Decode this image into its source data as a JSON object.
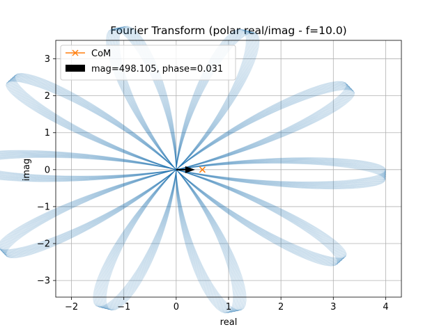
{
  "chart_data": {
    "type": "line",
    "title": "Fourier Transform (polar real/imag - f=10.0)",
    "xlabel": "real",
    "ylabel": "imag",
    "xlim": [
      -2.3,
      4.3
    ],
    "ylim": [
      -3.45,
      3.5
    ],
    "x_ticks": [
      -2,
      -1,
      0,
      1,
      2,
      3,
      4
    ],
    "y_ticks": [
      -3,
      -2,
      -1,
      0,
      1,
      2,
      3
    ],
    "x_tick_labels": [
      "−2",
      "−1",
      "0",
      "1",
      "2",
      "3",
      "4"
    ],
    "y_tick_labels": [
      "−3",
      "−2",
      "−1",
      "0",
      "1",
      "2",
      "3"
    ],
    "grid": true,
    "legend_position": "top-left",
    "series": [
      {
        "name": "CoM",
        "marker": "x",
        "color": "#ff7f0e",
        "x": [
          0.5
        ],
        "y": [
          0.0
        ]
      },
      {
        "name": "mag=498.105, phase=0.031",
        "kind": "arrow",
        "color": "#000000",
        "from": [
          0.0,
          0.0
        ],
        "to": [
          0.36,
          0.0
        ]
      }
    ],
    "polar_wave": {
      "color": "#1f77b4",
      "petals": 10,
      "radius_mean": 2.0,
      "radius_amplitude": 2.0,
      "phase_offset_per_ray": 0.031,
      "rays": 24
    }
  },
  "colors": {
    "grid": "#b0b0b0",
    "wave": "#1f77b4",
    "com": "#ff7f0e",
    "arrow": "#000000"
  }
}
